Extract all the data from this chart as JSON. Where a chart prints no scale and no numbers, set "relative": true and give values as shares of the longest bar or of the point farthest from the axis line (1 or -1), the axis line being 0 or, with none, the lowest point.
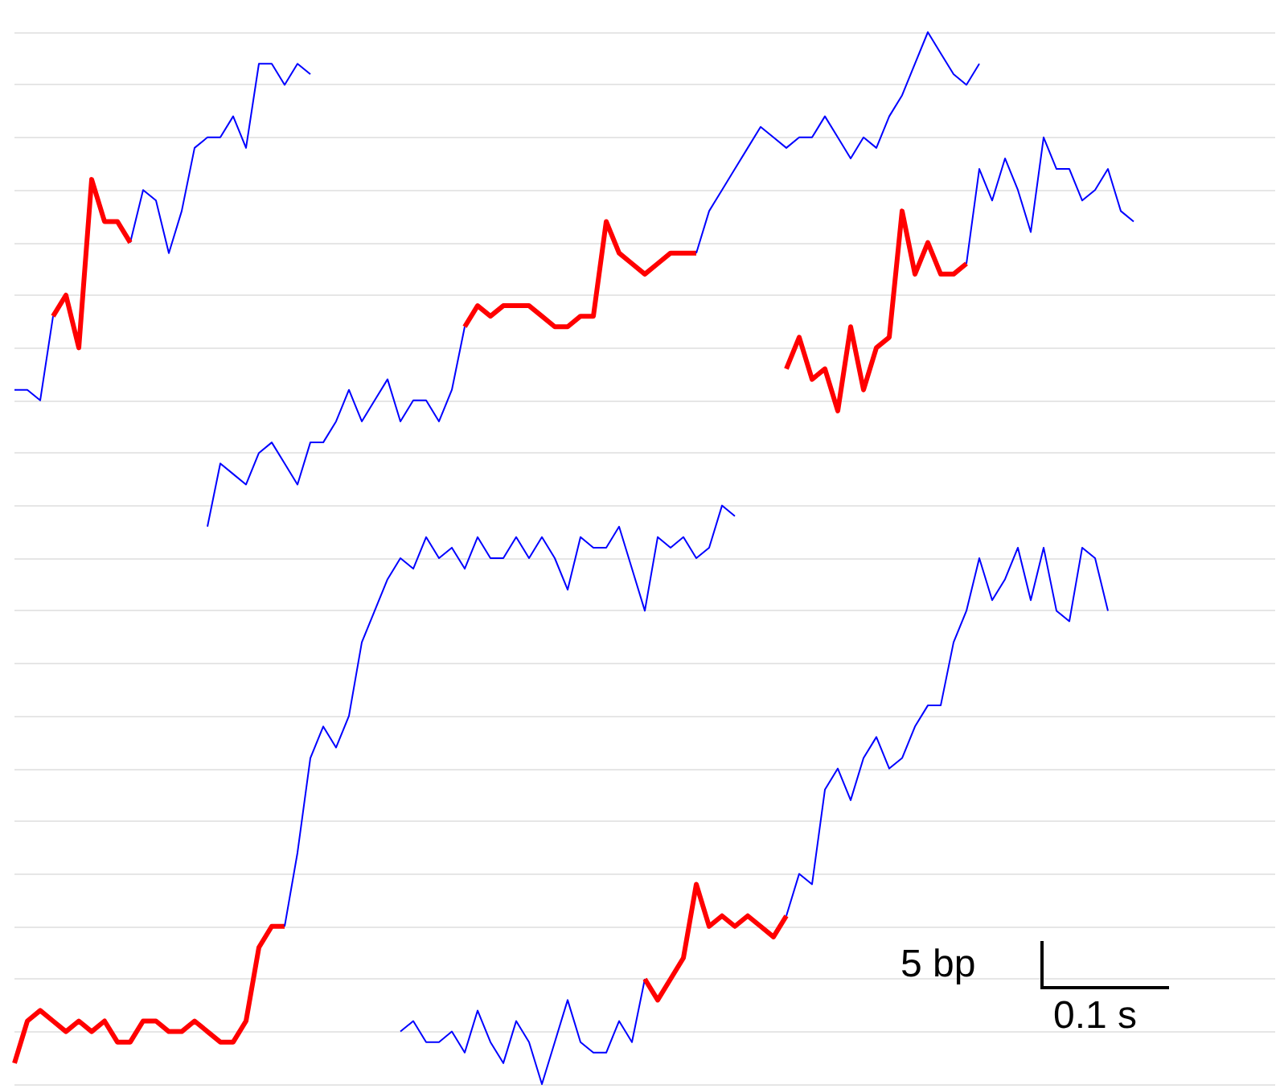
{
  "chart_data": {
    "type": "line",
    "relative": true,
    "grid": "y",
    "annotations": [
      "5 bp",
      "0.1 s"
    ],
    "categories": [
      null,
      null,
      null,
      null,
      null,
      null,
      null,
      null,
      null,
      null,
      null,
      null,
      null,
      null,
      null,
      null,
      null,
      null,
      null,
      null,
      null,
      null,
      null,
      null,
      null,
      null,
      null,
      null,
      null,
      null,
      null,
      null,
      null,
      null,
      null,
      null,
      null,
      null,
      null,
      null,
      null,
      null,
      null,
      null,
      null,
      null,
      null,
      null,
      null,
      null,
      null,
      null,
      null,
      null,
      null,
      null,
      null,
      null,
      null,
      null,
      null,
      null,
      null,
      null,
      null,
      null,
      null,
      null,
      null,
      null,
      null,
      null,
      null,
      null,
      null,
      null,
      null,
      null,
      null,
      null,
      null,
      null,
      null,
      null,
      null,
      null,
      null,
      null,
      null,
      null,
      null,
      null,
      null,
      null,
      null,
      null,
      null,
      null,
      null
    ],
    "series": [
      {
        "color": "#0000ff",
        "values": [
          0.66,
          0.66,
          0.65,
          0.73,
          null,
          null,
          null,
          null,
          null,
          null,
          null,
          null,
          null,
          null,
          null,
          null,
          null,
          null,
          null,
          null,
          null,
          null,
          null,
          null,
          null,
          null,
          null,
          null,
          null,
          null,
          null,
          null,
          null,
          null,
          null,
          null,
          null,
          null,
          null,
          null,
          null,
          null,
          null,
          null,
          null,
          null,
          null,
          null,
          null,
          null,
          null,
          null,
          null,
          null,
          null,
          null,
          null,
          null,
          null,
          null,
          null,
          null,
          null,
          null,
          null,
          null,
          null,
          null,
          null,
          null,
          null,
          null,
          null,
          null,
          null,
          null,
          null,
          null,
          null,
          null,
          null,
          null,
          null,
          null,
          null,
          null,
          null,
          null,
          null,
          null,
          null,
          null,
          null,
          null,
          null,
          null,
          null,
          null,
          null
        ]
      },
      {
        "color": "#0000ff",
        "values": [
          null,
          null,
          null,
          null,
          null,
          null,
          null,
          null,
          null,
          0.8,
          0.85,
          0.84,
          0.79,
          0.83,
          0.89,
          0.9,
          0.9,
          0.92,
          0.89,
          0.97,
          0.97,
          0.95,
          0.97,
          0.96,
          null,
          null,
          null,
          null,
          null,
          null,
          null,
          null,
          null,
          null,
          null,
          null,
          null,
          null,
          null,
          null,
          null,
          null,
          null,
          null,
          null,
          null,
          null,
          null,
          null,
          null,
          null,
          null,
          null,
          null,
          null,
          null,
          null,
          null,
          null,
          null,
          null,
          null,
          null,
          null,
          null,
          null,
          null,
          null,
          null,
          null,
          null,
          null,
          null,
          null,
          null,
          null,
          null,
          null,
          null,
          null,
          null,
          null,
          null,
          null,
          null,
          null,
          null,
          null,
          null,
          null,
          null,
          null,
          null,
          null,
          null,
          null,
          null,
          null,
          null
        ]
      },
      {
        "color": "#ff0000",
        "values": [
          null,
          null,
          null,
          0.73,
          0.75,
          0.7,
          0.86,
          0.82,
          0.82,
          0.8,
          null,
          null,
          null,
          null,
          null,
          null,
          null,
          null,
          null,
          null,
          null,
          null,
          null,
          null,
          null,
          null,
          null,
          null,
          null,
          null,
          null,
          null,
          null,
          null,
          null,
          null,
          null,
          null,
          null,
          null,
          null,
          null,
          null,
          null,
          null,
          null,
          null,
          null,
          null,
          null,
          null,
          null,
          null,
          null,
          null,
          null,
          null,
          null,
          null,
          null,
          null,
          null,
          null,
          null,
          null,
          null,
          null,
          null,
          null,
          null,
          null,
          null,
          null,
          null,
          null,
          null,
          null,
          null,
          null,
          null,
          null,
          null,
          null,
          null,
          null,
          null,
          null,
          null,
          null,
          null,
          null,
          null,
          null,
          null,
          null,
          null,
          null,
          null,
          null
        ]
      },
      {
        "color": "#0000ff",
        "values": [
          null,
          null,
          null,
          null,
          null,
          null,
          null,
          null,
          null,
          null,
          null,
          null,
          null,
          null,
          null,
          0.53,
          0.59,
          0.58,
          0.57,
          0.6,
          0.61,
          0.59,
          0.57,
          0.61,
          0.61,
          0.63,
          0.66,
          0.63,
          0.65,
          0.67,
          0.63,
          0.65,
          0.65,
          0.63,
          0.66,
          0.72,
          null,
          null,
          null,
          null,
          null,
          null,
          null,
          null,
          null,
          null,
          null,
          null,
          null,
          null,
          null,
          null,
          null,
          null,
          null,
          null,
          null,
          null,
          null,
          null,
          null,
          null,
          null,
          null,
          null,
          null,
          null,
          null,
          null,
          null,
          null,
          null,
          null,
          null,
          null,
          null,
          null,
          null,
          null,
          null,
          null,
          null,
          null,
          null,
          null,
          null,
          null,
          null,
          null,
          null,
          null,
          null,
          null,
          null,
          null,
          null,
          null,
          null,
          null
        ]
      },
      {
        "color": "#ff0000",
        "values": [
          null,
          null,
          null,
          null,
          null,
          null,
          null,
          null,
          null,
          null,
          null,
          null,
          null,
          null,
          null,
          null,
          null,
          null,
          null,
          null,
          null,
          null,
          null,
          null,
          null,
          null,
          null,
          null,
          null,
          null,
          null,
          null,
          null,
          null,
          null,
          0.72,
          0.74,
          0.73,
          0.74,
          0.74,
          0.74,
          0.73,
          0.72,
          0.72,
          0.73,
          0.73,
          0.82,
          0.79,
          0.78,
          0.77,
          0.78,
          0.79,
          0.79,
          0.79,
          null,
          null,
          null,
          null,
          null,
          null,
          null,
          null,
          null,
          null,
          null,
          null,
          null,
          null,
          null,
          null,
          null,
          null,
          null,
          null,
          null,
          null,
          null,
          null,
          null,
          null,
          null,
          null,
          null,
          null,
          null,
          null,
          null,
          null,
          null,
          null,
          null,
          null,
          null,
          null,
          null,
          null,
          null,
          null,
          null
        ]
      },
      {
        "color": "#0000ff",
        "values": [
          null,
          null,
          null,
          null,
          null,
          null,
          null,
          null,
          null,
          null,
          null,
          null,
          null,
          null,
          null,
          null,
          null,
          null,
          null,
          null,
          null,
          null,
          null,
          null,
          null,
          null,
          null,
          null,
          null,
          null,
          null,
          null,
          null,
          null,
          null,
          null,
          null,
          null,
          null,
          null,
          null,
          null,
          null,
          null,
          null,
          null,
          null,
          null,
          null,
          null,
          null,
          null,
          null,
          0.79,
          0.83,
          0.85,
          0.87,
          0.89,
          0.91,
          0.9,
          0.89,
          0.9,
          0.9,
          0.92,
          0.9,
          0.88,
          0.9,
          0.89,
          0.92,
          0.94,
          0.97,
          1,
          0.98,
          0.96,
          0.95,
          0.97,
          null,
          null,
          null,
          null,
          null,
          null,
          null,
          null,
          null,
          null,
          null,
          null,
          null,
          null,
          null,
          null,
          null,
          null,
          null,
          null,
          null,
          null,
          null
        ]
      },
      {
        "color": "#ff0000",
        "values": [
          null,
          null,
          null,
          null,
          null,
          null,
          null,
          null,
          null,
          null,
          null,
          null,
          null,
          null,
          null,
          null,
          null,
          null,
          null,
          null,
          null,
          null,
          null,
          null,
          null,
          null,
          null,
          null,
          null,
          null,
          null,
          null,
          null,
          null,
          null,
          null,
          null,
          null,
          null,
          null,
          null,
          null,
          null,
          null,
          null,
          null,
          null,
          null,
          null,
          null,
          null,
          null,
          null,
          null,
          null,
          null,
          null,
          null,
          null,
          null,
          0.68,
          0.71,
          0.67,
          0.68,
          0.64,
          0.72,
          0.66,
          0.7,
          0.71,
          0.83,
          0.77,
          0.8,
          0.77,
          0.77,
          0.78,
          null,
          null,
          null,
          null,
          null,
          null,
          null,
          null,
          null,
          null,
          null,
          null,
          null,
          null,
          null,
          null,
          null,
          null,
          null,
          null,
          null,
          null,
          null,
          null
        ]
      },
      {
        "color": "#0000ff",
        "values": [
          null,
          null,
          null,
          null,
          null,
          null,
          null,
          null,
          null,
          null,
          null,
          null,
          null,
          null,
          null,
          null,
          null,
          null,
          null,
          null,
          null,
          null,
          null,
          null,
          null,
          null,
          null,
          null,
          null,
          null,
          null,
          null,
          null,
          null,
          null,
          null,
          null,
          null,
          null,
          null,
          null,
          null,
          null,
          null,
          null,
          null,
          null,
          null,
          null,
          null,
          null,
          null,
          null,
          null,
          null,
          null,
          null,
          null,
          null,
          null,
          null,
          null,
          null,
          null,
          null,
          null,
          null,
          null,
          null,
          null,
          null,
          null,
          null,
          null,
          0.78,
          0.87,
          0.84,
          0.88,
          0.85,
          0.81,
          0.9,
          0.87,
          0.87,
          0.84,
          0.85,
          0.87,
          0.83,
          0.82,
          null,
          null,
          null,
          null,
          null,
          null,
          null,
          null,
          null,
          null,
          null
        ]
      },
      {
        "color": "#ff0000",
        "values": [
          0.02,
          0.06,
          0.07,
          0.06,
          0.05,
          0.06,
          0.05,
          0.06,
          0.04,
          0.04,
          0.06,
          0.06,
          0.05,
          0.05,
          0.06,
          0.05,
          0.04,
          0.04,
          0.06,
          0.13,
          0.15,
          0.15,
          null,
          null,
          null,
          null,
          null,
          null,
          null,
          null,
          null,
          null,
          null,
          null,
          null,
          null,
          null,
          null,
          null,
          null,
          null,
          null,
          null,
          null,
          null,
          null,
          null,
          null,
          null,
          null,
          null,
          null,
          null,
          null,
          null,
          null,
          null,
          null,
          null,
          null,
          null,
          null,
          null,
          null,
          null,
          null,
          null,
          null,
          null,
          null,
          null,
          null,
          null,
          null,
          null,
          null,
          null,
          null,
          null,
          null,
          null,
          null,
          null,
          null,
          null,
          null,
          null,
          null,
          null,
          null,
          null,
          null,
          null,
          null,
          null,
          null,
          null,
          null,
          null
        ]
      },
      {
        "color": "#0000ff",
        "values": [
          null,
          null,
          null,
          null,
          null,
          null,
          null,
          null,
          null,
          null,
          null,
          null,
          null,
          null,
          null,
          null,
          null,
          null,
          null,
          null,
          null,
          0.15,
          0.22,
          0.31,
          0.34,
          0.32,
          0.35,
          0.42,
          0.45,
          0.48,
          0.5,
          0.49,
          0.52,
          0.5,
          0.51,
          0.49,
          0.52,
          0.5,
          0.5,
          0.52,
          0.5,
          0.52,
          0.5,
          0.47,
          0.52,
          0.51,
          0.51,
          0.53,
          0.49,
          0.45,
          0.52,
          0.51,
          0.52,
          0.5,
          0.51,
          0.55,
          0.54,
          null,
          null,
          null,
          null,
          null,
          null,
          null,
          null,
          null,
          null,
          null,
          null,
          null,
          null,
          null,
          null,
          null,
          null,
          null,
          null,
          null,
          null,
          null,
          null,
          null,
          null,
          null,
          null,
          null,
          null,
          null,
          null,
          null,
          null,
          null,
          null,
          null,
          null,
          null,
          null,
          null,
          null
        ]
      },
      {
        "color": "#0000ff",
        "values": [
          null,
          null,
          null,
          null,
          null,
          null,
          null,
          null,
          null,
          null,
          null,
          null,
          null,
          null,
          null,
          null,
          null,
          null,
          null,
          null,
          null,
          null,
          null,
          null,
          null,
          null,
          null,
          null,
          null,
          null,
          0.05,
          0.06,
          0.04,
          0.04,
          0.05,
          0.03,
          0.07,
          0.04,
          0.02,
          0.06,
          0.04,
          0,
          0.04,
          0.08,
          0.04,
          0.03,
          0.03,
          0.06,
          0.04,
          0.1,
          null,
          null,
          null,
          null,
          null,
          null,
          null,
          null,
          null,
          null,
          null,
          null,
          null,
          null,
          null,
          null,
          null,
          null,
          null,
          null,
          null,
          null,
          null,
          null,
          null,
          null,
          null,
          null,
          null,
          null,
          null,
          null,
          null,
          null,
          null,
          null,
          null,
          null,
          null,
          null,
          null,
          null,
          null,
          null,
          null,
          null,
          null,
          null,
          null
        ]
      },
      {
        "color": "#ff0000",
        "values": [
          null,
          null,
          null,
          null,
          null,
          null,
          null,
          null,
          null,
          null,
          null,
          null,
          null,
          null,
          null,
          null,
          null,
          null,
          null,
          null,
          null,
          null,
          null,
          null,
          null,
          null,
          null,
          null,
          null,
          null,
          null,
          null,
          null,
          null,
          null,
          null,
          null,
          null,
          null,
          null,
          null,
          null,
          null,
          null,
          null,
          null,
          null,
          null,
          null,
          0.1,
          0.08,
          0.1,
          0.12,
          0.19,
          0.15,
          0.16,
          0.15,
          0.16,
          0.15,
          0.14,
          0.16,
          null,
          null,
          null,
          null,
          null,
          null,
          null,
          null,
          null,
          null,
          null,
          null,
          null,
          null,
          null,
          null,
          null,
          null,
          null,
          null,
          null,
          null,
          null,
          null,
          null,
          null,
          null,
          null,
          null,
          null,
          null,
          null,
          null,
          null,
          null,
          null,
          null,
          null
        ]
      },
      {
        "color": "#0000ff",
        "values": [
          null,
          null,
          null,
          null,
          null,
          null,
          null,
          null,
          null,
          null,
          null,
          null,
          null,
          null,
          null,
          null,
          null,
          null,
          null,
          null,
          null,
          null,
          null,
          null,
          null,
          null,
          null,
          null,
          null,
          null,
          null,
          null,
          null,
          null,
          null,
          null,
          null,
          null,
          null,
          null,
          null,
          null,
          null,
          null,
          null,
          null,
          null,
          null,
          null,
          null,
          null,
          null,
          null,
          null,
          null,
          null,
          null,
          null,
          null,
          null,
          0.16,
          0.2,
          0.19,
          0.28,
          0.3,
          0.27,
          0.31,
          0.33,
          0.3,
          0.31,
          0.34,
          0.36,
          0.36,
          0.42,
          0.45,
          0.5,
          0.46,
          0.48,
          0.51,
          0.46,
          0.51,
          0.45,
          0.44,
          0.51,
          0.5,
          0.45,
          null,
          null,
          null,
          null,
          null,
          null,
          null,
          null,
          null,
          null,
          null,
          null,
          null
        ]
      }
    ]
  }
}
